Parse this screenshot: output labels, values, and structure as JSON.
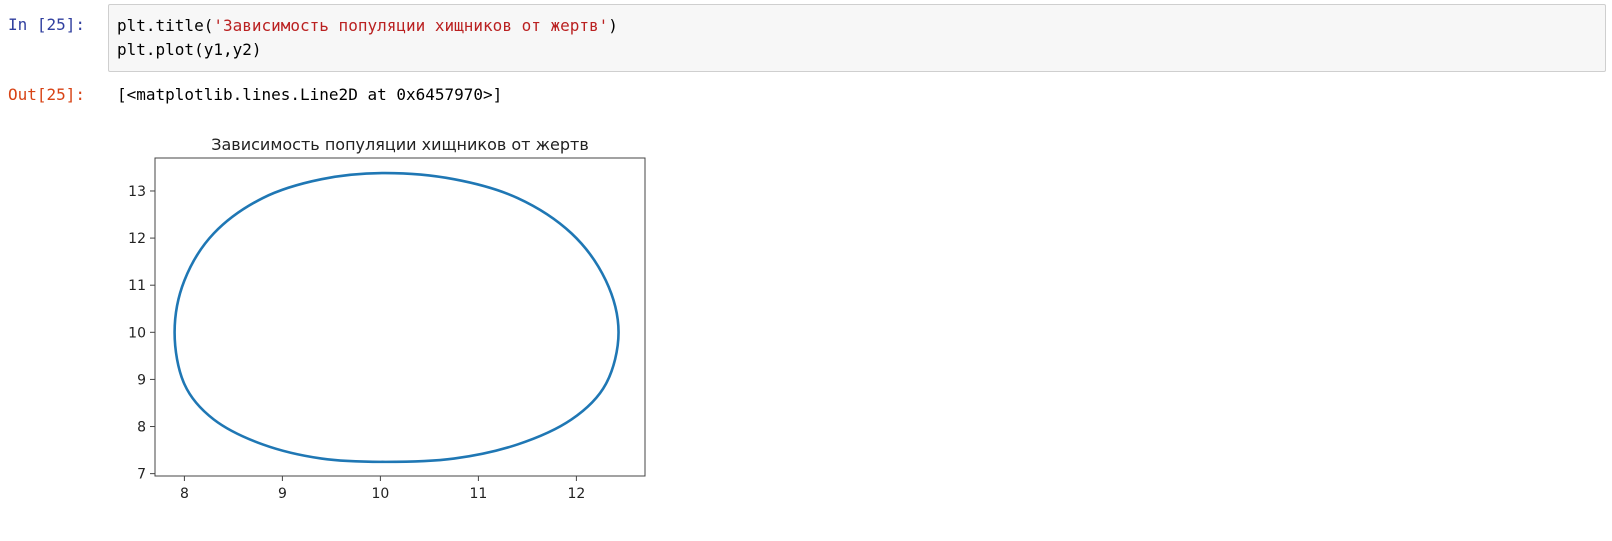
{
  "cell_in": {
    "prompt": "In [25]:",
    "lines": [
      {
        "prefix": "plt.title(",
        "string": "'Зависимость популяции хищников от жертв'",
        "suffix": ")"
      },
      {
        "text": "plt.plot(y1,y2)"
      }
    ]
  },
  "cell_out": {
    "prompt": "Out[25]:",
    "text": "[<matplotlib.lines.Line2D at 0x6457970>]"
  },
  "chart_data": {
    "type": "line",
    "title": "Зависимость популяции хищников от жертв",
    "xlabel": "",
    "ylabel": "",
    "xlim": [
      7.7,
      12.7
    ],
    "ylim": [
      6.95,
      13.7
    ],
    "xticks": [
      8,
      9,
      10,
      11,
      12
    ],
    "yticks": [
      7,
      8,
      9,
      10,
      11,
      12,
      13
    ],
    "grid": false,
    "line_color": "#1f77b4",
    "series": [
      {
        "x": [
          12.43,
          12.3,
          11.95,
          11.4,
          10.75,
          10.05,
          9.4,
          8.8,
          8.3,
          8.0,
          7.9,
          8.0,
          8.3,
          8.8,
          9.4,
          10.05,
          10.75,
          11.4,
          11.95,
          12.3,
          12.43
        ],
        "y": [
          10.0,
          11.1,
          12.1,
          12.85,
          13.25,
          13.38,
          13.25,
          12.85,
          12.1,
          11.1,
          10.0,
          8.9,
          8.15,
          7.62,
          7.32,
          7.25,
          7.32,
          7.62,
          8.15,
          8.9,
          10.0
        ]
      }
    ]
  }
}
